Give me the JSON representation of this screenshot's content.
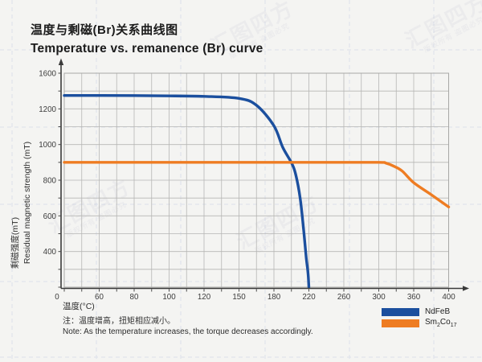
{
  "title": {
    "zh": "温度与剩磁(Br)关系曲线图",
    "en": "Temperature vs. remanence (Br) curve"
  },
  "note": {
    "zh": "注：温度增高，扭矩相应减小。",
    "en": "Note: As the temperature increases, the torque decreases accordingly."
  },
  "watermark": {
    "text": "汇图四方",
    "subtext": "版权所有 盗图必究"
  },
  "legend": {
    "items": [
      {
        "label": "NdFeB"
      },
      {
        "parts": [
          "Sm",
          "2",
          "Co",
          "17"
        ]
      }
    ]
  },
  "chart_data": {
    "type": "line",
    "title": "Temperature vs. remanence (Br) curve",
    "title_zh": "温度与剩磁(Br)关系曲线图",
    "xlabel": "温度(°C)",
    "ylabel_zh": "剩磁强度(mT)",
    "ylabel_en": "Residual magnetic strength (mT)",
    "x_tick_labels": [
      0,
      60,
      80,
      100,
      120,
      150,
      180,
      220,
      260,
      300,
      360,
      400
    ],
    "y_tick_labels": [
      0,
      400,
      600,
      800,
      1000,
      1200,
      1600
    ],
    "xlim": [
      0,
      400
    ],
    "ylim": [
      0,
      1600
    ],
    "grid": true,
    "axis_note": "tick labels are evenly spaced although values are irregular; one minor gridline between each pair of ticks",
    "legend_position": "bottom-right",
    "series": [
      {
        "name": "NdFeB",
        "color": "#1b4f9e",
        "points": [
          [
            0,
            1350
          ],
          [
            60,
            1350
          ],
          [
            80,
            1349
          ],
          [
            100,
            1346
          ],
          [
            120,
            1340
          ],
          [
            150,
            1318
          ],
          [
            165,
            1240
          ],
          [
            180,
            1105
          ],
          [
            190,
            985
          ],
          [
            200,
            898
          ],
          [
            205,
            830
          ],
          [
            210,
            700
          ],
          [
            214,
            520
          ],
          [
            217,
            330
          ],
          [
            219,
            160
          ],
          [
            220,
            0
          ]
        ]
      },
      {
        "name": "Sm2Co17",
        "color": "#ee7c22",
        "points": [
          [
            0,
            900
          ],
          [
            60,
            900
          ],
          [
            120,
            900
          ],
          [
            180,
            900
          ],
          [
            240,
            900
          ],
          [
            300,
            900
          ],
          [
            312,
            896
          ],
          [
            325,
            880
          ],
          [
            340,
            852
          ],
          [
            360,
            786
          ],
          [
            380,
            719
          ],
          [
            400,
            650
          ]
        ]
      }
    ]
  }
}
